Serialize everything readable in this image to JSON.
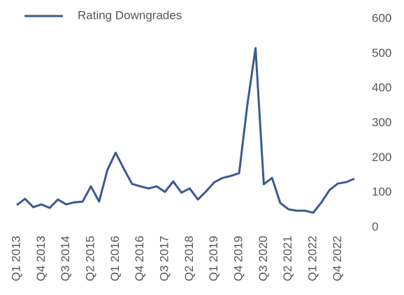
{
  "chart_data": {
    "type": "line",
    "categories": [
      "Q1 2013",
      null,
      null,
      "Q4 2013",
      null,
      null,
      "Q3 2014",
      null,
      null,
      "Q2 2015",
      null,
      null,
      "Q1 2016",
      null,
      null,
      "Q4 2016",
      null,
      null,
      "Q3 2017",
      null,
      null,
      "Q2 2018",
      null,
      null,
      "Q1 2019",
      null,
      null,
      "Q4 2019",
      null,
      null,
      "Q3 2020",
      null,
      null,
      "Q2 2021",
      null,
      null,
      "Q1 2022",
      null,
      null,
      "Q4 2022",
      null,
      null
    ],
    "series": [
      {
        "name": "Rating Downgrades",
        "color": "#3b5a92",
        "values": [
          64,
          82,
          58,
          66,
          56,
          80,
          66,
          72,
          74,
          118,
          74,
          165,
          215,
          169,
          125,
          118,
          112,
          118,
          102,
          132,
          100,
          112,
          80,
          104,
          130,
          142,
          148,
          156,
          353,
          516,
          124,
          142,
          70,
          52,
          48,
          48,
          42,
          72,
          108,
          126,
          130,
          140
        ]
      }
    ],
    "ylim": [
      0,
      600
    ],
    "yticks": [
      0,
      100,
      200,
      300,
      400,
      500,
      600
    ],
    "grid": false,
    "legend": "top-left"
  }
}
